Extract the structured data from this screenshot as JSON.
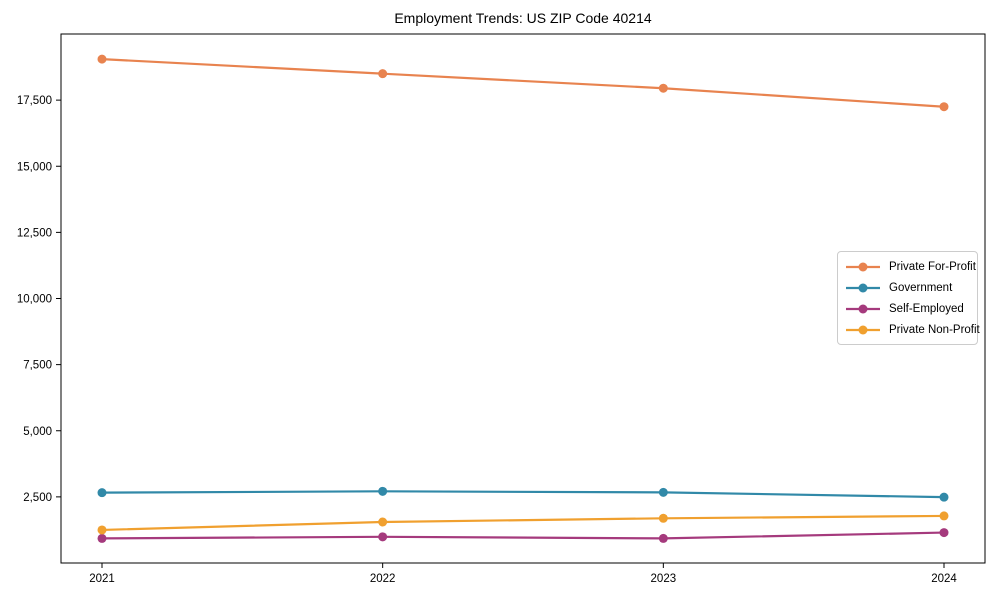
{
  "chart_data": {
    "type": "line",
    "title": "Employment Trends: US ZIP Code 40214",
    "categories": [
      "2021",
      "2022",
      "2023",
      "2024"
    ],
    "series": [
      {
        "name": "Private For-Profit",
        "color": "#e8834f",
        "values": [
          19050,
          18500,
          17950,
          17250
        ]
      },
      {
        "name": "Government",
        "color": "#3189a8",
        "values": [
          2660,
          2710,
          2670,
          2490
        ]
      },
      {
        "name": "Self-Employed",
        "color": "#a53a7d",
        "values": [
          930,
          990,
          930,
          1150
        ]
      },
      {
        "name": "Private Non-Profit",
        "color": "#f0a02f",
        "values": [
          1250,
          1550,
          1690,
          1780
        ]
      }
    ],
    "xlabel": "",
    "ylabel": "",
    "yticks": [
      2500,
      5000,
      7500,
      10000,
      12500,
      15000,
      17500
    ],
    "ylim": [
      0,
      20000
    ],
    "grid": false,
    "legend_position": "center-right",
    "marker": "circle",
    "axis_color": "#000000",
    "background_color": "#ffffff"
  }
}
